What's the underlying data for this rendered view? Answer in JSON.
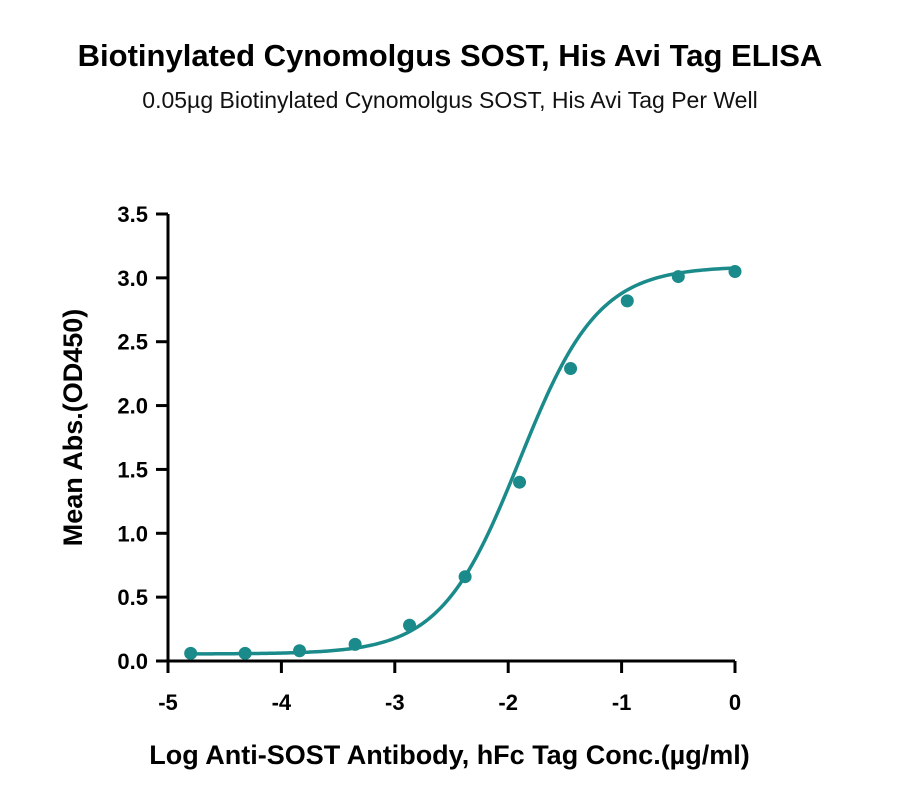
{
  "chart_data": {
    "type": "scatter",
    "title": "Biotinylated Cynomolgus SOST, His Avi Tag ELISA",
    "subtitle": "0.05µg Biotinylated Cynomolgus SOST, His Avi Tag Per Well",
    "xlabel": "Log Anti-SOST Antibody, hFc Tag Conc.(µg/ml)",
    "ylabel": "Mean Abs.(OD450)",
    "xlim": [
      -5,
      0
    ],
    "ylim": [
      0,
      3.5
    ],
    "x_ticks": [
      "-5",
      "-4",
      "-3",
      "-2",
      "-1",
      "0"
    ],
    "y_ticks": [
      "0.0",
      "0.5",
      "1.0",
      "1.5",
      "2.0",
      "2.5",
      "3.0",
      "3.5"
    ],
    "grid": false,
    "series": [
      {
        "color": "#1a8a8a",
        "x": [
          -4.8,
          -4.32,
          -3.84,
          -3.35,
          -2.87,
          -2.38,
          -1.9,
          -1.45,
          -0.95,
          -0.5,
          0.0
        ],
        "y": [
          0.06,
          0.06,
          0.08,
          0.13,
          0.28,
          0.66,
          1.4,
          2.29,
          2.82,
          3.01,
          3.05
        ]
      }
    ],
    "fit_curve": {
      "type": "4PL",
      "bottom": 0.055,
      "top": 3.09,
      "ec50_log": -1.9,
      "hill": 1.25
    }
  }
}
